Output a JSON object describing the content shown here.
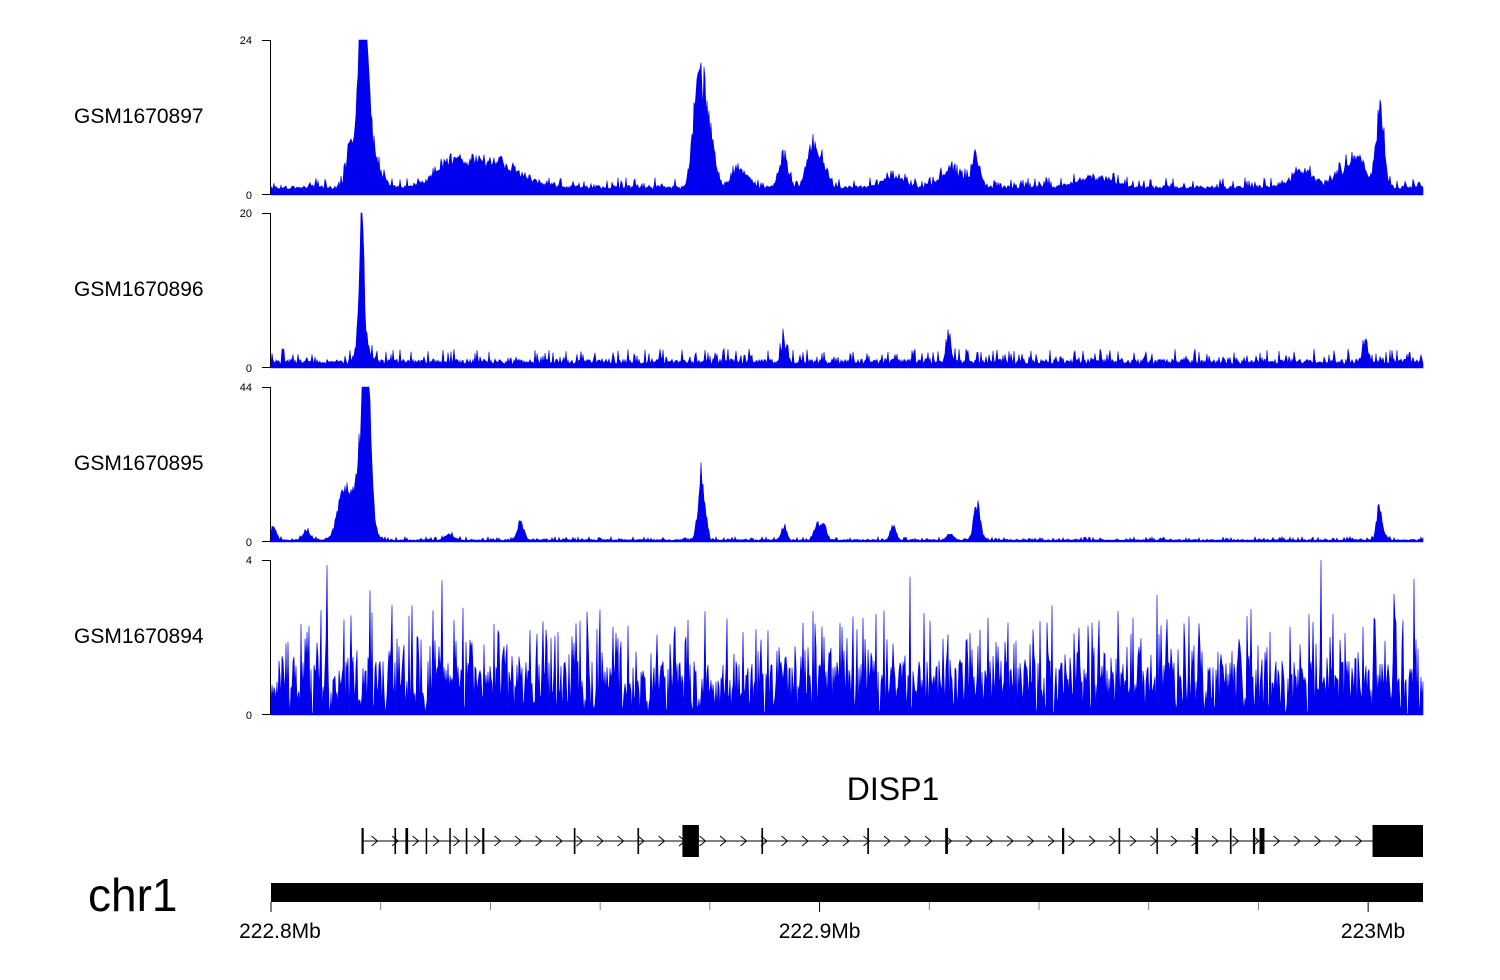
{
  "chart_data": {
    "type": "area",
    "chromosome": "chr1",
    "x_range": [
      222.8,
      223.01
    ],
    "x_ticks": [
      {
        "value": 222.8,
        "label": "222.8Mb"
      },
      {
        "value": 222.9,
        "label": "222.9Mb"
      },
      {
        "value": 223.0,
        "label": "223Mb"
      }
    ],
    "x_minor_ticks": [
      222.82,
      222.84,
      222.86,
      222.88,
      222.92,
      222.94,
      222.96,
      222.98
    ],
    "colors": {
      "signal": "#0000ee",
      "gene": "#000000",
      "axis": "#000000"
    },
    "series": [
      {
        "name": "GSM1670897",
        "ymax": 24,
        "ymax_label": "24",
        "ymin_label": "0",
        "baseline": 0.9,
        "noise": 1.0,
        "seed": 11,
        "peaks": [
          [
            222.8145,
            7.0,
            0.0007
          ],
          [
            222.8165,
            22.5,
            0.0006
          ],
          [
            222.8172,
            14.0,
            0.0009
          ],
          [
            222.8185,
            3.5,
            0.0015
          ],
          [
            222.833,
            3.5,
            0.003
          ],
          [
            222.839,
            2.5,
            0.003
          ],
          [
            222.8435,
            2.0,
            0.004
          ],
          [
            222.879,
            14.0,
            0.0012
          ],
          [
            222.8775,
            8.0,
            0.0008
          ],
          [
            222.8855,
            2.5,
            0.0015
          ],
          [
            222.8935,
            4.5,
            0.0008
          ],
          [
            222.8985,
            6.5,
            0.0009
          ],
          [
            222.9005,
            4.0,
            0.0009
          ],
          [
            222.9135,
            1.5,
            0.002
          ],
          [
            222.924,
            2.5,
            0.002
          ],
          [
            222.9285,
            4.5,
            0.0008
          ],
          [
            222.95,
            1.5,
            0.003
          ],
          [
            222.988,
            2.5,
            0.002
          ],
          [
            222.996,
            3.0,
            0.002
          ],
          [
            223.0022,
            12.0,
            0.0007
          ],
          [
            222.9985,
            3.0,
            0.0012
          ]
        ]
      },
      {
        "name": "GSM1670896",
        "ymax": 20,
        "ymax_label": "20",
        "ymin_label": "0",
        "baseline": 0.5,
        "noise": 1.1,
        "seed": 23,
        "peaks": [
          [
            222.8165,
            19.0,
            0.00035
          ],
          [
            222.8167,
            4.0,
            0.0009
          ],
          [
            222.8935,
            2.5,
            0.0005
          ],
          [
            222.9235,
            2.5,
            0.0005
          ],
          [
            222.9995,
            2.6,
            0.0005
          ]
        ]
      },
      {
        "name": "GSM1670895",
        "ymax": 44,
        "ymax_label": "44",
        "ymin_label": "0",
        "baseline": 0.4,
        "noise": 0.6,
        "seed": 37,
        "peaks": [
          [
            222.8173,
            42.0,
            0.0007
          ],
          [
            222.8168,
            20.0,
            0.0012
          ],
          [
            222.8125,
            7.0,
            0.0009
          ],
          [
            222.8135,
            8.5,
            0.0008
          ],
          [
            222.8145,
            6.0,
            0.0008
          ],
          [
            222.8065,
            3.0,
            0.0006
          ],
          [
            222.8005,
            3.5,
            0.0005
          ],
          [
            222.8325,
            1.5,
            0.0008
          ],
          [
            222.8455,
            4.5,
            0.0006
          ],
          [
            222.8785,
            19.0,
            0.0006
          ],
          [
            222.8935,
            3.5,
            0.0005
          ],
          [
            222.8995,
            4.5,
            0.0005
          ],
          [
            222.9008,
            4.5,
            0.0005
          ],
          [
            222.9135,
            3.5,
            0.0005
          ],
          [
            222.9238,
            1.5,
            0.0006
          ],
          [
            222.9287,
            9.5,
            0.0006
          ],
          [
            223.0021,
            10.0,
            0.0005
          ]
        ]
      },
      {
        "name": "GSM1670894",
        "ymax": 4,
        "ymax_label": "4",
        "ymin_label": "0",
        "baseline": 1.3,
        "noise": 2.6,
        "seed": 51,
        "spiky": true,
        "peaks": []
      }
    ],
    "gene": {
      "name": "DISP1",
      "start": 222.8165,
      "end": 223.01,
      "strand": "+",
      "exons": [
        [
          222.8165,
          222.8169
        ],
        [
          222.8225,
          222.8228
        ],
        [
          222.8245,
          222.825
        ],
        [
          222.8282,
          222.8284
        ],
        [
          222.8325,
          222.8327
        ],
        [
          222.8355,
          222.8358
        ],
        [
          222.8385,
          222.8389
        ],
        [
          222.8552,
          222.8555
        ],
        [
          222.8668,
          222.8671
        ],
        [
          222.875,
          222.878
        ],
        [
          222.8894,
          222.8897
        ],
        [
          222.9087,
          222.909
        ],
        [
          222.9229,
          222.9234
        ],
        [
          222.9442,
          222.9446
        ],
        [
          222.9545,
          222.9548
        ],
        [
          222.9614,
          222.9616
        ],
        [
          222.9685,
          222.969
        ],
        [
          222.9748,
          222.9751
        ],
        [
          222.979,
          222.9794
        ],
        [
          222.9802,
          222.9811
        ],
        [
          222.9803,
          222.9806
        ],
        [
          223.0008,
          223.01
        ]
      ]
    }
  }
}
